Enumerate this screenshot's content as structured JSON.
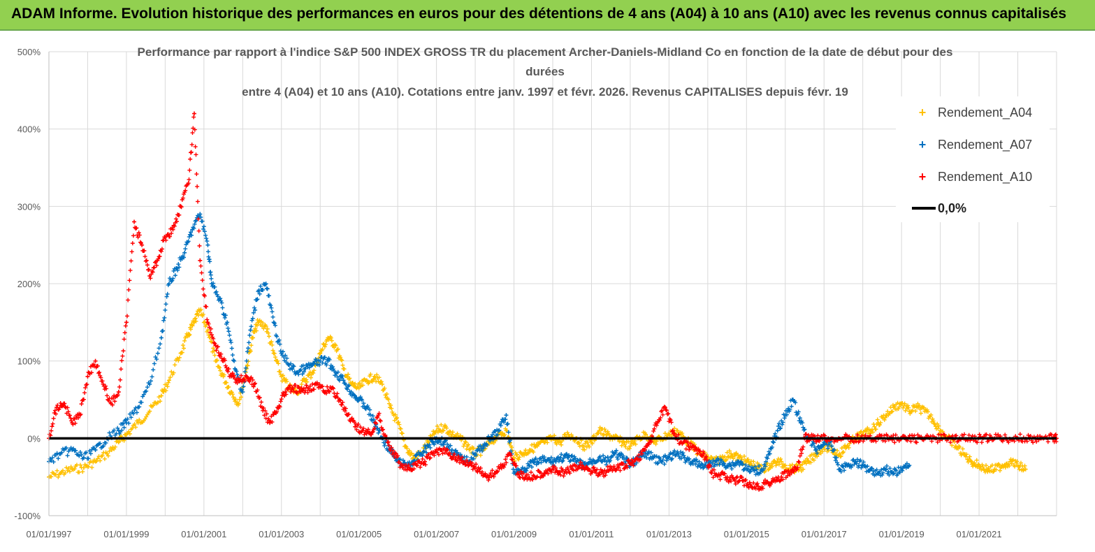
{
  "banner": {
    "title": "ADAM Informe. Evolution historique des performances en euros pour des détentions de 4 ans (A04) à 10 ans (A10) avec les revenus connus capitalisés"
  },
  "colors": {
    "banner_bg": "#92d050",
    "A04": "#ffc000",
    "A07": "#0070c0",
    "A10": "#ff0000",
    "zero_line": "#000000",
    "grid": "#d9d9d9"
  },
  "chart_data": {
    "type": "scatter",
    "title_lines": [
      "Performance par rapport à l'indice S&P 500 INDEX GROSS TR  du placement Archer-Daniels-Midland Co en fonction de la date de début pour des",
      "durées",
      "entre 4 (A04) et 10 ans (A10).  Cotations entre janv. 1997 et févr.  2026. Revenus CAPITALISES depuis févr. 19"
    ],
    "xlabel": "",
    "ylabel": "",
    "x_range": [
      1997.0,
      2023.0
    ],
    "ylim": [
      -100,
      500
    ],
    "x_ticks": [
      {
        "label": "01/01/1997",
        "year": 1997
      },
      {
        "label": "01/01/1999",
        "year": 1999
      },
      {
        "label": "01/01/2001",
        "year": 2001
      },
      {
        "label": "01/01/2003",
        "year": 2003
      },
      {
        "label": "01/01/2005",
        "year": 2005
      },
      {
        "label": "01/01/2007",
        "year": 2007
      },
      {
        "label": "01/01/2009",
        "year": 2009
      },
      {
        "label": "01/01/2011",
        "year": 2011
      },
      {
        "label": "01/01/2013",
        "year": 2013
      },
      {
        "label": "01/01/2015",
        "year": 2015
      },
      {
        "label": "01/01/2017",
        "year": 2017
      },
      {
        "label": "01/01/2019",
        "year": 2019
      },
      {
        "label": "01/01/2021",
        "year": 2021
      }
    ],
    "y_ticks": [
      {
        "label": "500%",
        "value": 500
      },
      {
        "label": "400%",
        "value": 400
      },
      {
        "label": "300%",
        "value": 300
      },
      {
        "label": "200%",
        "value": 200
      },
      {
        "label": "100%",
        "value": 100
      },
      {
        "label": "0%",
        "value": 0
      },
      {
        "label": "-100%",
        "value": -100
      }
    ],
    "grid": true,
    "legend_position": "top-right",
    "legend": [
      {
        "label": "Rendement_A04",
        "series": "A04",
        "marker": "+"
      },
      {
        "label": "Rendement_A07",
        "series": "A07",
        "marker": "+"
      },
      {
        "label": "Rendement_A10",
        "series": "A10",
        "marker": "+"
      },
      {
        "label": "0,0%",
        "series": "zero",
        "marker": "line"
      }
    ],
    "zero_line": {
      "label": "0,0%",
      "value": 0
    },
    "series": [
      {
        "name": "Rendement_A04",
        "key": "A04",
        "x": [
          1997.0,
          1997.3,
          1997.6,
          1997.9,
          1998.2,
          1998.5,
          1998.8,
          1999.0,
          1999.3,
          1999.6,
          1999.9,
          2000.1,
          2000.4,
          2000.6,
          2000.75,
          2000.9,
          2001.1,
          2001.3,
          2001.5,
          2001.7,
          2001.9,
          2002.1,
          2002.25,
          2002.4,
          2002.6,
          2002.8,
          2003.0,
          2003.2,
          2003.4,
          2003.6,
          2003.8,
          2004.0,
          2004.2,
          2004.4,
          2004.6,
          2004.8,
          2005.0,
          2005.2,
          2005.4,
          2005.6,
          2005.8,
          2006.0,
          2006.2,
          2006.4,
          2006.6,
          2006.8,
          2007.0,
          2007.2,
          2007.4,
          2007.6,
          2007.8,
          2008.0,
          2008.2,
          2008.4,
          2008.6,
          2008.8,
          2009.0,
          2009.2,
          2009.4,
          2009.6,
          2009.8,
          2010.0,
          2010.2,
          2010.4,
          2010.6,
          2010.8,
          2011.0,
          2011.2,
          2011.4,
          2011.6,
          2011.8,
          2012.0,
          2012.2,
          2012.4,
          2012.6,
          2012.8,
          2013.0,
          2013.2,
          2013.4,
          2013.6,
          2013.8,
          2014.0,
          2014.2,
          2014.4,
          2014.6,
          2014.8,
          2015.0,
          2015.2,
          2015.4,
          2015.6,
          2015.8,
          2016.0,
          2016.2,
          2016.4,
          2016.6,
          2016.8,
          2017.0,
          2017.2,
          2017.4,
          2017.6,
          2017.8,
          2018.0,
          2018.2,
          2018.4,
          2018.6,
          2018.8,
          2019.0,
          2019.2,
          2019.4,
          2019.6,
          2019.8,
          2020.0,
          2020.2,
          2020.4,
          2020.6,
          2020.8,
          2021.0,
          2021.2,
          2021.4,
          2021.6,
          2021.8,
          2022.0,
          2022.2
        ],
        "values": [
          -50,
          -45,
          -40,
          -38,
          -30,
          -20,
          -5,
          5,
          20,
          35,
          55,
          75,
          110,
          135,
          150,
          165,
          140,
          100,
          80,
          60,
          45,
          90,
          130,
          150,
          145,
          110,
          80,
          65,
          60,
          75,
          85,
          110,
          130,
          120,
          90,
          70,
          65,
          75,
          80,
          70,
          40,
          20,
          -10,
          -25,
          -20,
          -5,
          10,
          15,
          5,
          0,
          -10,
          -20,
          -15,
          -5,
          5,
          10,
          -25,
          -20,
          -15,
          -10,
          -5,
          0,
          -5,
          5,
          0,
          -10,
          -5,
          10,
          5,
          0,
          -5,
          -10,
          0,
          5,
          -5,
          0,
          5,
          10,
          0,
          -10,
          -20,
          -25,
          -30,
          -25,
          -20,
          -25,
          -30,
          -35,
          -40,
          -35,
          -30,
          -35,
          -40,
          -38,
          -30,
          -20,
          -10,
          -15,
          -20,
          -10,
          0,
          5,
          10,
          20,
          30,
          40,
          45,
          35,
          40,
          35,
          25,
          10,
          0,
          -10,
          -20,
          -30,
          -35,
          -40,
          -40,
          -35,
          -30,
          -35,
          -40
        ]
      },
      {
        "name": "Rendement_A07",
        "key": "A07",
        "x": [
          1997.0,
          1997.3,
          1997.6,
          1997.9,
          1998.2,
          1998.5,
          1998.8,
          1999.0,
          1999.3,
          1999.6,
          1999.9,
          2000.1,
          2000.3,
          2000.5,
          2000.7,
          2000.9,
          2001.1,
          2001.2,
          2001.4,
          2001.6,
          2001.8,
          2002.0,
          2002.2,
          2002.4,
          2002.6,
          2002.8,
          2003.0,
          2003.2,
          2003.4,
          2003.6,
          2003.8,
          2004.0,
          2004.2,
          2004.4,
          2004.6,
          2004.8,
          2005.0,
          2005.2,
          2005.4,
          2005.6,
          2005.8,
          2006.0,
          2006.2,
          2006.4,
          2006.6,
          2006.8,
          2007.0,
          2007.2,
          2007.4,
          2007.6,
          2007.8,
          2008.0,
          2008.2,
          2008.4,
          2008.6,
          2008.8,
          2009.0,
          2009.2,
          2009.4,
          2009.6,
          2009.8,
          2010.0,
          2010.2,
          2010.4,
          2010.6,
          2010.8,
          2011.0,
          2011.2,
          2011.4,
          2011.6,
          2011.8,
          2012.0,
          2012.2,
          2012.4,
          2012.6,
          2012.8,
          2013.0,
          2013.2,
          2013.4,
          2013.6,
          2013.8,
          2014.0,
          2014.2,
          2014.4,
          2014.6,
          2014.8,
          2015.0,
          2015.2,
          2015.4,
          2015.6,
          2015.8,
          2016.0,
          2016.2,
          2016.4,
          2016.6,
          2016.8,
          2017.0,
          2017.2,
          2017.4,
          2017.6,
          2017.8,
          2018.0,
          2018.2,
          2018.4,
          2018.6,
          2018.8,
          2019.0,
          2019.2
        ],
        "values": [
          -30,
          -20,
          -15,
          -25,
          -15,
          0,
          10,
          20,
          40,
          70,
          130,
          200,
          220,
          240,
          270,
          290,
          250,
          200,
          180,
          150,
          90,
          60,
          140,
          190,
          200,
          150,
          110,
          95,
          85,
          90,
          95,
          100,
          100,
          85,
          75,
          60,
          50,
          40,
          20,
          0,
          -15,
          -30,
          -35,
          -30,
          -20,
          -10,
          0,
          -5,
          -15,
          -25,
          -30,
          -20,
          -10,
          0,
          10,
          30,
          -45,
          -40,
          -35,
          -30,
          -28,
          -30,
          -25,
          -25,
          -30,
          -35,
          -30,
          -25,
          -30,
          -20,
          -25,
          -35,
          -25,
          -20,
          -25,
          -30,
          -25,
          -20,
          -25,
          -30,
          -35,
          -35,
          -30,
          -32,
          -35,
          -30,
          -40,
          -42,
          -40,
          -20,
          10,
          30,
          50,
          20,
          0,
          -15,
          -5,
          -10,
          -40,
          -35,
          -30,
          -35,
          -40,
          -45,
          -40,
          -45,
          -40,
          -35
        ]
      },
      {
        "name": "Rendement_A10",
        "key": "A10",
        "x": [
          1997.0,
          1997.2,
          1997.4,
          1997.6,
          1997.8,
          1998.0,
          1998.2,
          1998.4,
          1998.6,
          1998.8,
          1999.0,
          1999.2,
          1999.4,
          1999.6,
          1999.8,
          2000.0,
          2000.2,
          2000.4,
          2000.6,
          2000.75,
          2000.9,
          2001.1,
          2001.3,
          2001.5,
          2001.7,
          2001.9,
          2002.1,
          2002.3,
          2002.5,
          2002.7,
          2002.9,
          2003.1,
          2003.3,
          2003.5,
          2003.7,
          2003.9,
          2004.1,
          2004.3,
          2004.5,
          2004.7,
          2004.9,
          2005.1,
          2005.3,
          2005.5,
          2005.7,
          2005.9,
          2006.1,
          2006.3,
          2006.5,
          2006.7,
          2006.9,
          2007.1,
          2007.3,
          2007.5,
          2007.7,
          2007.9,
          2008.1,
          2008.3,
          2008.5,
          2008.7,
          2008.9,
          2009.1,
          2009.3,
          2009.5,
          2009.7,
          2009.9,
          2010.1,
          2010.3,
          2010.5,
          2010.7,
          2010.9,
          2011.1,
          2011.3,
          2011.5,
          2011.7,
          2011.9,
          2012.1,
          2012.3,
          2012.5,
          2012.7,
          2012.9,
          2013.1,
          2013.3,
          2013.5,
          2013.7,
          2013.9,
          2014.1,
          2014.3,
          2014.5,
          2014.7,
          2014.9,
          2015.1,
          2015.3,
          2015.5,
          2015.7,
          2015.9,
          2016.1,
          2016.3,
          2016.5,
          2016.7,
          2016.9,
          2017.2,
          2017.5,
          2017.8,
          2018.1,
          2018.4,
          2018.7,
          2019.0,
          2019.3,
          2019.6,
          2019.9,
          2020.2,
          2020.5,
          2020.8,
          2021.1,
          2021.4,
          2021.7,
          2022.0,
          2022.3,
          2022.6,
          2022.9,
          2023.0
        ],
        "values": [
          0,
          40,
          45,
          20,
          30,
          80,
          100,
          70,
          45,
          60,
          150,
          280,
          250,
          210,
          230,
          260,
          270,
          300,
          330,
          420,
          230,
          150,
          120,
          100,
          80,
          75,
          80,
          70,
          40,
          20,
          40,
          60,
          65,
          60,
          65,
          70,
          60,
          65,
          50,
          30,
          15,
          10,
          5,
          30,
          0,
          -20,
          -35,
          -40,
          -35,
          -30,
          -20,
          -15,
          -20,
          -25,
          -30,
          -35,
          -40,
          -50,
          -45,
          -35,
          -20,
          -45,
          -50,
          -48,
          -45,
          -40,
          -42,
          -45,
          -40,
          -35,
          -40,
          -42,
          -45,
          -40,
          -38,
          -35,
          -30,
          -20,
          -5,
          20,
          40,
          10,
          -5,
          -10,
          -15,
          -20,
          -45,
          -48,
          -50,
          -55,
          -55,
          -60,
          -62,
          -58,
          -55,
          -50,
          -45,
          -40,
          0,
          0,
          0,
          0,
          0,
          0,
          0,
          0,
          0,
          0,
          0,
          0,
          0,
          0,
          0,
          0,
          0,
          0,
          0,
          0,
          0,
          0,
          0,
          0
        ]
      }
    ]
  }
}
